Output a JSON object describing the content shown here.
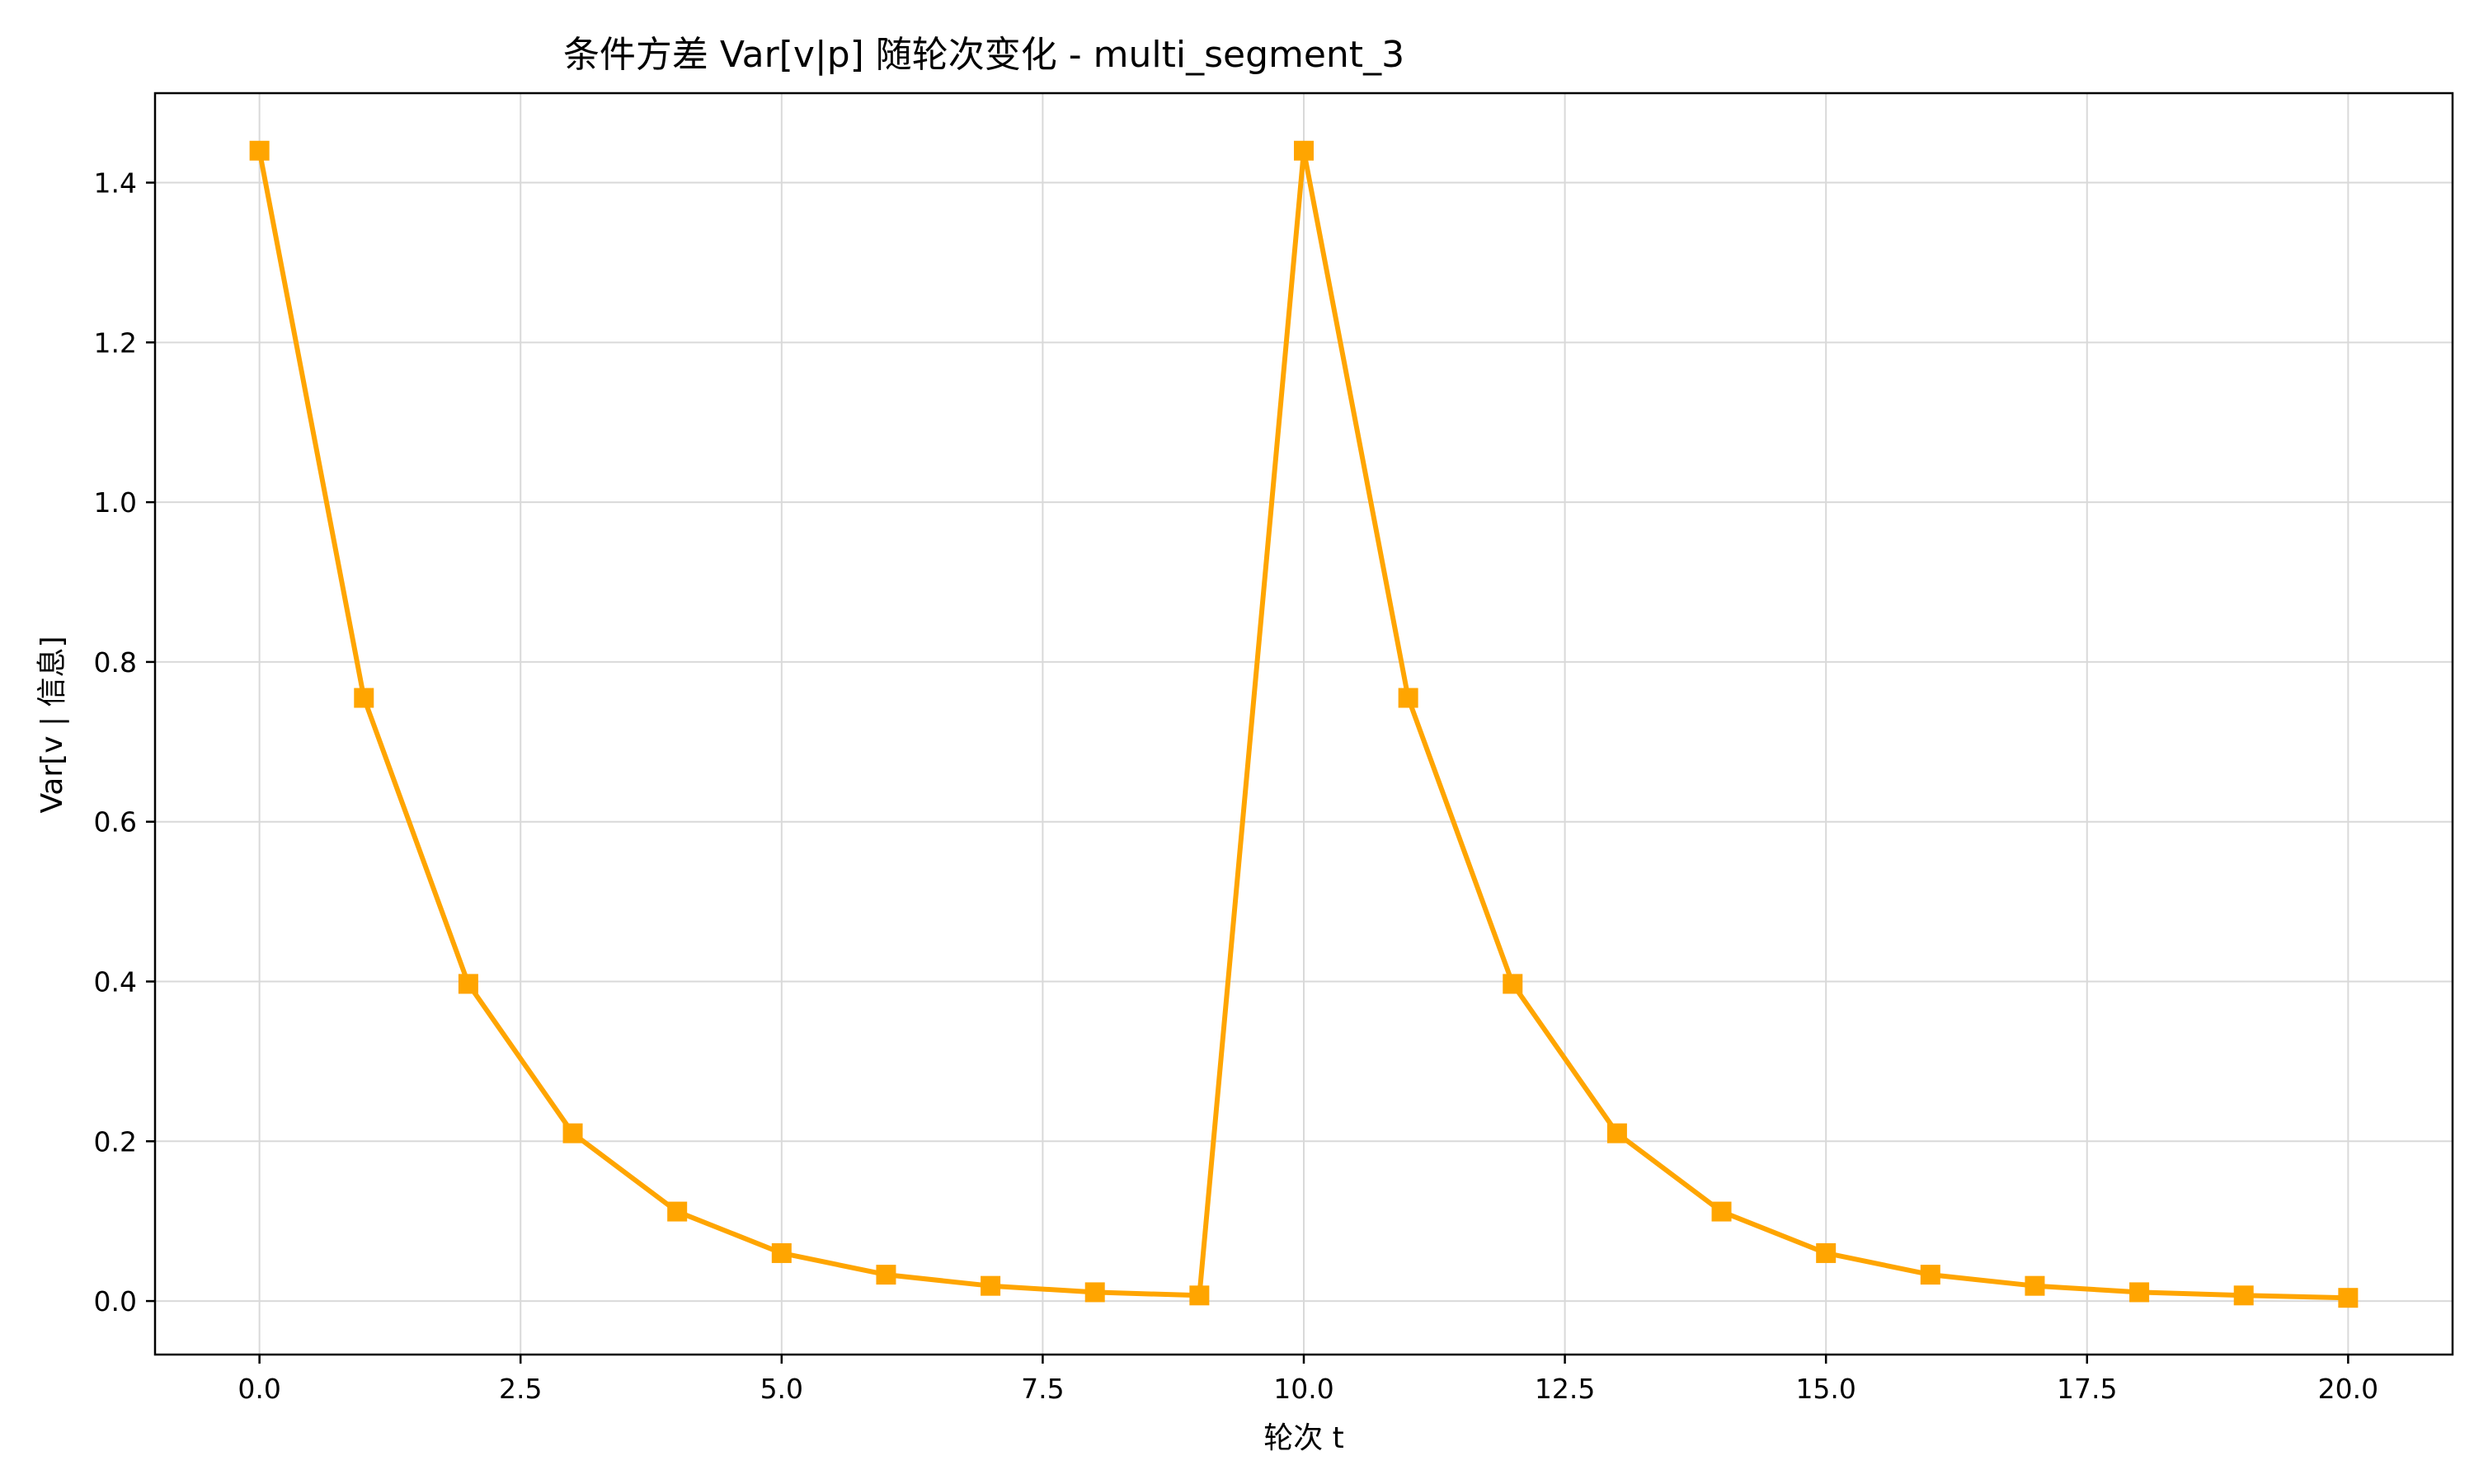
{
  "chart_data": {
    "type": "line",
    "title": "条件方差 Var[v|p] 随轮次变化 - multi_segment_3",
    "xlabel": "轮次 t",
    "ylabel": "Var[v | 信息]",
    "xlim": [
      -1.0,
      21.0
    ],
    "ylim": [
      -0.067,
      1.512
    ],
    "xticks": [
      0.0,
      2.5,
      5.0,
      7.5,
      10.0,
      12.5,
      15.0,
      17.5,
      20.0
    ],
    "xtick_labels": [
      "0.0",
      "2.5",
      "5.0",
      "7.5",
      "10.0",
      "12.5",
      "15.0",
      "17.5",
      "20.0"
    ],
    "yticks": [
      0.0,
      0.2,
      0.4,
      0.6,
      0.8,
      1.0,
      1.2,
      1.4
    ],
    "ytick_labels": [
      "0.0",
      "0.2",
      "0.4",
      "0.6",
      "0.8",
      "1.0",
      "1.2",
      "1.4"
    ],
    "grid": true,
    "marker": "square",
    "color": "#FFA500",
    "series": [
      {
        "x": [
          0,
          1,
          2,
          3,
          4,
          5,
          6,
          7,
          8,
          9,
          10,
          11,
          12,
          13,
          14,
          15,
          16,
          17,
          18,
          19,
          20
        ],
        "values": [
          1.44,
          0.755,
          0.397,
          0.21,
          0.112,
          0.06,
          0.033,
          0.019,
          0.011,
          0.007,
          1.44,
          0.755,
          0.397,
          0.21,
          0.112,
          0.06,
          0.033,
          0.019,
          0.011,
          0.007,
          0.004
        ]
      }
    ]
  }
}
